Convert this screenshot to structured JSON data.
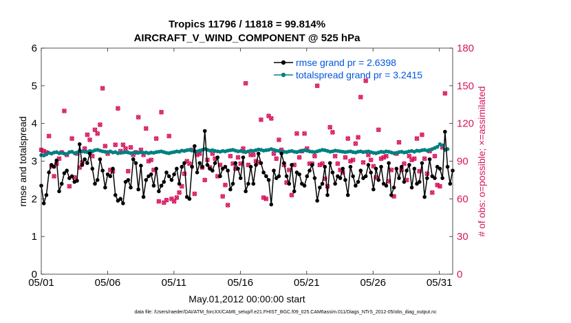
{
  "chart_data": {
    "type": "line",
    "title": "Tropics 11796 / 11818 = 99.814%",
    "subtitle": "AIRCRAFT_V_WIND_COMPONENT @ 525 hPa",
    "xlabel": "May.01,2012 00:00:00 start",
    "ylabel": "rmse and totalspread",
    "y2label": "# of obs: o=possible; ×=assimilated",
    "footnote": "data file: /Users/raeder/DAI/ATM_forcXX/CAM6_setup/f.e21.FHIST_BGC.f09_025.CAM6assim.011/Diags_NTrS_2012-05/obs_diag_output.nc",
    "xlim": [
      1,
      32
    ],
    "ylim": [
      0,
      6
    ],
    "y2lim": [
      0,
      180
    ],
    "xticks": [
      1,
      6,
      11,
      16,
      21,
      26,
      31
    ],
    "xtick_labels": [
      "05/01",
      "05/06",
      "05/11",
      "05/16",
      "05/21",
      "05/26",
      "05/31"
    ],
    "yticks": [
      0,
      1,
      2,
      3,
      4,
      5,
      6
    ],
    "y2ticks": [
      0,
      30,
      60,
      90,
      120,
      150,
      180
    ],
    "series": [
      {
        "name": "rmse grand pr = 2.6398",
        "color": "#000000",
        "axis": "left",
        "values": [
          2.35,
          1.88,
          2.1,
          2.7,
          2.9,
          2.85,
          3.02,
          2.2,
          2.4,
          2.68,
          2.75,
          2.55,
          2.6,
          2.45,
          2.48,
          3.45,
          2.9,
          3.05,
          2.95,
          3.2,
          2.8,
          2.4,
          2.5,
          3.05,
          2.75,
          2.3,
          2.65,
          2.6,
          2.8,
          2.1,
          1.95,
          2.0,
          1.88,
          2.45,
          2.5,
          2.3,
          3.05,
          2.95,
          2.25,
          2.88,
          2.05,
          2.5,
          2.6,
          2.65,
          2.35,
          2.8,
          2.2,
          2.35,
          2.45,
          2.7,
          2.6,
          2.5,
          2.65,
          2.8,
          2.4,
          2.85,
          2.95,
          2.05,
          2.0,
          2.85,
          3.4,
          2.7,
          2.95,
          2.85,
          3.8,
          2.9,
          2.8,
          2.75,
          2.95,
          3.1,
          2.6,
          2.8,
          2.85,
          2.75,
          2.25,
          2.4,
          2.95,
          2.8,
          2.55,
          3.1,
          2.2,
          2.4,
          2.85,
          2.4,
          2.9,
          3.2,
          2.95,
          2.7,
          2.6,
          2.5,
          1.85,
          2.75,
          2.55,
          2.6,
          3.2,
          2.95,
          2.6,
          2.4,
          2.9,
          2.2,
          2.7,
          2.65,
          2.4,
          2.35,
          2.6,
          2.75,
          2.9,
          2.55,
          1.95,
          2.3,
          2.4,
          2.85,
          2.1,
          2.95,
          2.7,
          2.4,
          2.6,
          2.55,
          2.8,
          2.5,
          2.1,
          2.85,
          2.6,
          2.35,
          2.45,
          2.75,
          2.55,
          2.6,
          2.9,
          2.7,
          2.25,
          2.8,
          2.5,
          2.85,
          2.4,
          2.35,
          2.95,
          2.1,
          2.3,
          2.8,
          2.55,
          2.85,
          2.45,
          2.75,
          2.9,
          2.3,
          2.8,
          2.4,
          2.45,
          2.95,
          2.05,
          2.55,
          3.05,
          2.6,
          2.55,
          2.85,
          2.8,
          2.55,
          3.78,
          2.85,
          2.4,
          2.75
        ]
      },
      {
        "name": "totalspread grand pr = 3.2415",
        "color": "#008080",
        "axis": "left",
        "values": [
          3.16,
          3.15,
          3.18,
          3.22,
          3.2,
          3.23,
          3.24,
          3.21,
          3.22,
          3.2,
          3.19,
          3.24,
          3.25,
          3.21,
          3.23,
          3.28,
          3.26,
          3.25,
          3.24,
          3.27,
          3.26,
          3.29,
          3.3,
          3.28,
          3.26,
          3.25,
          3.24,
          3.26,
          3.23,
          3.24,
          3.21,
          3.22,
          3.23,
          3.24,
          3.23,
          3.21,
          3.22,
          3.23,
          3.22,
          3.24,
          3.22,
          3.23,
          3.21,
          3.23,
          3.22,
          3.24,
          3.25,
          3.26,
          3.24,
          3.22,
          3.21,
          3.23,
          3.24,
          3.26,
          3.25,
          3.28,
          3.27,
          3.29,
          3.3,
          3.28,
          3.27,
          3.26,
          3.28,
          3.3,
          3.32,
          3.3,
          3.28,
          3.29,
          3.27,
          3.26,
          3.25,
          3.27,
          3.26,
          3.28,
          3.29,
          3.3,
          3.28,
          3.26,
          3.27,
          3.25,
          3.24,
          3.26,
          3.28,
          3.27,
          3.29,
          3.31,
          3.3,
          3.28,
          3.29,
          3.3,
          3.32,
          3.3,
          3.28,
          3.27,
          3.26,
          3.25,
          3.24,
          3.26,
          3.27,
          3.25,
          3.24,
          3.26,
          3.27,
          3.29,
          3.28,
          3.26,
          3.25,
          3.24,
          3.26,
          3.28,
          3.3,
          3.29,
          3.27,
          3.25,
          3.26,
          3.28,
          3.27,
          3.26,
          3.25,
          3.24,
          3.25,
          3.26,
          3.24,
          3.23,
          3.25,
          3.26,
          3.24,
          3.25,
          3.26,
          3.24,
          3.22,
          3.21,
          3.23,
          3.25,
          3.24,
          3.26,
          3.25,
          3.23,
          3.21,
          3.22,
          3.24,
          3.25,
          3.23,
          3.24,
          3.26,
          3.27,
          3.25,
          3.28,
          3.27,
          3.29,
          3.3,
          3.28,
          3.3,
          3.32,
          3.35,
          3.38,
          3.45,
          3.42,
          3.3,
          3.32
        ]
      },
      {
        "name": "# of obs possible",
        "color": "#d6155f",
        "axis": "right",
        "marker": "o",
        "values": [
          99,
          98,
          97,
          110,
          86,
          78,
          88,
          92,
          97,
          130,
          95,
          70,
          108,
          77,
          96,
          85,
          89,
          100,
          111,
          107,
          94,
          115,
          112,
          119,
          148,
          102,
          96,
          83,
          82,
          103,
          132,
          98,
          103,
          100,
          82,
          101,
          95,
          97,
          125,
          99,
          95,
          116,
          90,
          91,
          83,
          108,
          58,
          129,
          57,
          59,
          110,
          60,
          58,
          61,
          65,
          70,
          80,
          90,
          88,
          99,
          64,
          95,
          96,
          85,
          75,
          91,
          85,
          96,
          92,
          78,
          87,
          62,
          71,
          55,
          94,
          88,
          84,
          93,
          88,
          100,
          152,
          87,
          95,
          95,
          90,
          89,
          123,
          61,
          60,
          126,
          124,
          96,
          92,
          107,
          99,
          87,
          73,
          83,
          63,
          87,
          112,
          93,
          98,
          112,
          100,
          88,
          88,
          94,
          150,
          87,
          88,
          76,
          70,
          117,
          113,
          94,
          88,
          83,
          81,
          93,
          108,
          90,
          91,
          104,
          109,
          141,
          89,
          154,
          95,
          91,
          86,
          77,
          115,
          92,
          93,
          94,
          74,
          83,
          62,
          96,
          105,
          83,
          88,
          75,
          94,
          91,
          92,
          108,
          82,
          111,
          92,
          80,
          98,
          65,
          94,
          71,
          70,
          101,
          144
        ]
      },
      {
        "name": "# of obs assimilated",
        "color": "#d6155f",
        "axis": "right",
        "marker": "x",
        "values": [
          99,
          98,
          97,
          110,
          86,
          78,
          88,
          92,
          97,
          130,
          95,
          70,
          108,
          77,
          96,
          85,
          89,
          100,
          111,
          107,
          94,
          115,
          112,
          119,
          148,
          102,
          96,
          83,
          82,
          103,
          132,
          98,
          103,
          100,
          82,
          101,
          95,
          97,
          125,
          99,
          95,
          116,
          90,
          91,
          83,
          108,
          58,
          129,
          57,
          59,
          110,
          60,
          58,
          61,
          65,
          70,
          80,
          90,
          88,
          99,
          64,
          95,
          96,
          85,
          75,
          91,
          85,
          96,
          92,
          78,
          87,
          62,
          71,
          55,
          94,
          88,
          84,
          93,
          88,
          100,
          152,
          87,
          95,
          95,
          90,
          89,
          123,
          61,
          60,
          126,
          124,
          96,
          92,
          107,
          99,
          87,
          73,
          83,
          63,
          87,
          112,
          93,
          98,
          112,
          100,
          88,
          88,
          94,
          150,
          87,
          88,
          76,
          70,
          117,
          113,
          94,
          88,
          83,
          81,
          93,
          108,
          90,
          91,
          104,
          109,
          141,
          89,
          154,
          95,
          91,
          86,
          77,
          115,
          92,
          93,
          94,
          74,
          83,
          62,
          96,
          105,
          83,
          88,
          75,
          94,
          91,
          92,
          108,
          82,
          111,
          92,
          80,
          98,
          65,
          94,
          71,
          70,
          101,
          144
        ]
      }
    ]
  }
}
